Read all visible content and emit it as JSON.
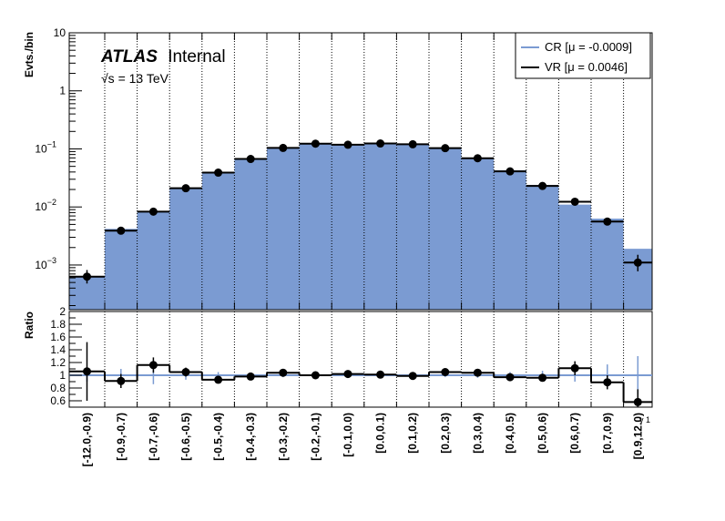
{
  "chart_data": {
    "type": "bar",
    "label": {
      "bold": "ATLAS",
      "rest": "Internal",
      "energy": "√s = 13 TeV"
    },
    "categories": [
      "[-12.0,-0.9)",
      "[-0.9,-0.7)",
      "[-0.7,-0.6)",
      "[-0.6,-0.5)",
      "[-0.5,-0.4)",
      "[-0.4,-0.3)",
      "[-0.3,-0.2)",
      "[-0.2,-0.1)",
      "[-0.1,0.0)",
      "[0.0,0.1)",
      "[0.1,0.2)",
      "[0.2,0.3)",
      "[0.3,0.4)",
      "[0.4,0.5)",
      "[0.5,0.6)",
      "[0.6,0.7)",
      "[0.7,0.9)",
      "[0.9,12.0)"
    ],
    "xlabel": "γ 1",
    "top": {
      "ylabel": "Evts./bin",
      "yscale": "log",
      "ylim": [
        0.00017,
        10
      ],
      "yticks": [
        {
          "v": 10,
          "label": "10"
        },
        {
          "v": 1,
          "label": "1"
        },
        {
          "v": 0.1,
          "label": "10",
          "exp": "−1"
        },
        {
          "v": 0.01,
          "label": "10",
          "exp": "−2"
        },
        {
          "v": 0.001,
          "label": "10",
          "exp": "−3"
        }
      ],
      "series": [
        {
          "name": "CR [μ = -0.0009]",
          "style": "filled-histogram",
          "color": "#7b9bd2",
          "line_color": "#6c8ebf",
          "values": [
            0.00063,
            0.0042,
            0.0085,
            0.021,
            0.04,
            0.067,
            0.102,
            0.124,
            0.118,
            0.123,
            0.12,
            0.1,
            0.068,
            0.043,
            0.024,
            0.011,
            0.0063,
            0.0019
          ]
        },
        {
          "name": "VR [μ = 0.0046]",
          "style": "points",
          "color": "#000000",
          "values": [
            0.00063,
            0.0039,
            0.0083,
            0.021,
            0.039,
            0.067,
            0.104,
            0.123,
            0.118,
            0.124,
            0.12,
            0.103,
            0.069,
            0.041,
            0.023,
            0.0123,
            0.0056,
            0.0011
          ],
          "err_low": [
            0.00048,
            0.0034,
            0.0073,
            0.019,
            0.036,
            0.062,
            0.098,
            0.117,
            0.112,
            0.118,
            0.114,
            0.097,
            0.064,
            0.038,
            0.021,
            0.0108,
            0.0048,
            0.00078
          ],
          "err_high": [
            0.00082,
            0.0044,
            0.0094,
            0.023,
            0.042,
            0.072,
            0.11,
            0.129,
            0.124,
            0.13,
            0.126,
            0.109,
            0.074,
            0.044,
            0.025,
            0.014,
            0.0065,
            0.0015
          ]
        }
      ]
    },
    "ratio": {
      "ylabel": "Ratio",
      "ylim": [
        0.5,
        2
      ],
      "yticks": [
        {
          "v": 2,
          "label": "2"
        },
        {
          "v": 1.8,
          "label": "1.8"
        },
        {
          "v": 1.6,
          "label": "1.6"
        },
        {
          "v": 1.4,
          "label": "1.4"
        },
        {
          "v": 1.2,
          "label": "1.2"
        },
        {
          "v": 1,
          "label": "1"
        },
        {
          "v": 0.8,
          "label": "0.8"
        },
        {
          "v": 0.6,
          "label": "0.6"
        }
      ],
      "reference": 1,
      "values": [
        1.06,
        0.91,
        1.16,
        1.05,
        0.93,
        0.98,
        1.04,
        1.0,
        1.02,
        1.01,
        0.99,
        1.05,
        1.04,
        0.97,
        0.96,
        1.11,
        0.89,
        0.58
      ],
      "err_low": [
        0.6,
        0.8,
        1.04,
        0.98,
        0.89,
        0.94,
        1.0,
        0.97,
        0.99,
        0.98,
        0.96,
        1.01,
        1.0,
        0.93,
        0.9,
        1.0,
        0.78,
        0.42
      ],
      "err_high": [
        1.52,
        1.02,
        1.28,
        1.12,
        0.97,
        1.02,
        1.08,
        1.03,
        1.05,
        1.04,
        1.02,
        1.09,
        1.08,
        1.01,
        1.02,
        1.22,
        1.0,
        0.78
      ],
      "cr_band_low": [
        0.9,
        0.9,
        0.86,
        0.93,
        0.95,
        0.96,
        0.97,
        0.98,
        0.98,
        0.98,
        0.98,
        0.97,
        0.96,
        0.95,
        0.93,
        0.9,
        0.83,
        0.7
      ],
      "cr_band_high": [
        1.1,
        1.1,
        1.14,
        1.07,
        1.05,
        1.04,
        1.03,
        1.02,
        1.02,
        1.02,
        1.02,
        1.03,
        1.04,
        1.05,
        1.07,
        1.1,
        1.17,
        1.3
      ]
    },
    "legend": {
      "placement": "top-right"
    },
    "grid": {
      "x": true,
      "y": false,
      "style": "dotted"
    }
  }
}
